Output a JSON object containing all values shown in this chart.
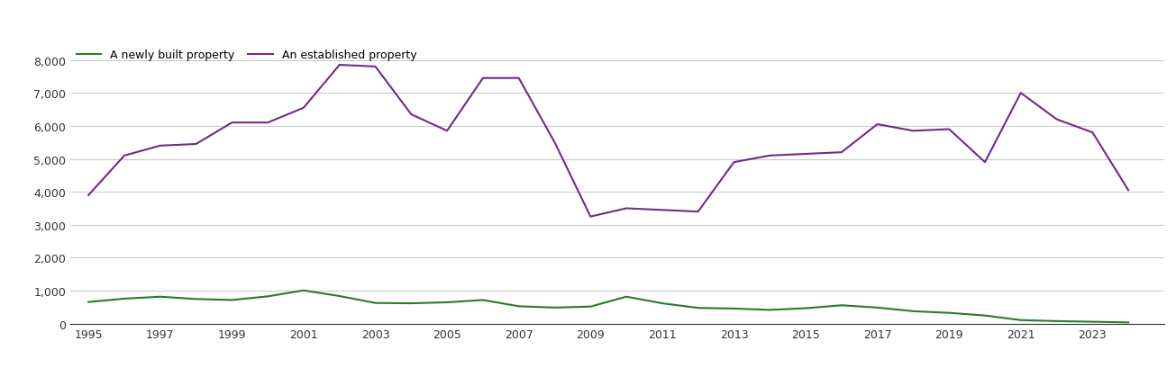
{
  "years": [
    1995,
    1996,
    1997,
    1998,
    1999,
    2000,
    2001,
    2002,
    2003,
    2004,
    2005,
    2006,
    2007,
    2008,
    2009,
    2010,
    2011,
    2012,
    2013,
    2014,
    2015,
    2016,
    2017,
    2018,
    2019,
    2020,
    2021,
    2022,
    2023,
    2024
  ],
  "new_homes": [
    660,
    760,
    820,
    750,
    720,
    830,
    1010,
    840,
    630,
    620,
    650,
    720,
    530,
    490,
    520,
    820,
    620,
    480,
    460,
    420,
    470,
    560,
    490,
    380,
    330,
    250,
    110,
    80,
    60,
    40
  ],
  "established_homes": [
    3900,
    5100,
    5400,
    5450,
    6100,
    6100,
    6550,
    7850,
    7800,
    6350,
    5850,
    7450,
    7450,
    5500,
    3250,
    3500,
    3450,
    3400,
    4900,
    5100,
    5150,
    5200,
    6050,
    5850,
    5900,
    4900,
    7000,
    6200,
    5800,
    4050
  ],
  "new_color": "#2a7a2a",
  "established_color": "#6b2d8b",
  "legend_new": "A newly built property",
  "legend_established": "An established property",
  "ylim_bottom": 0,
  "ylim_top": 8500,
  "yticks": [
    0,
    1000,
    2000,
    3000,
    4000,
    5000,
    6000,
    7000,
    8000
  ],
  "xtick_labels": [
    "1995",
    "1997",
    "1999",
    "2001",
    "2003",
    "2005",
    "2007",
    "2009",
    "2011",
    "2013",
    "2015",
    "2017",
    "2019",
    "2021",
    "2023"
  ],
  "xtick_values": [
    1995,
    1997,
    1999,
    2001,
    2003,
    2005,
    2007,
    2009,
    2011,
    2013,
    2015,
    2017,
    2019,
    2021,
    2023
  ],
  "xlim_left": 1994.5,
  "xlim_right": 2025.0,
  "background_color": "#ffffff",
  "grid_color": "#cccccc",
  "line_width": 1.5,
  "tick_fontsize": 9,
  "legend_fontsize": 9
}
